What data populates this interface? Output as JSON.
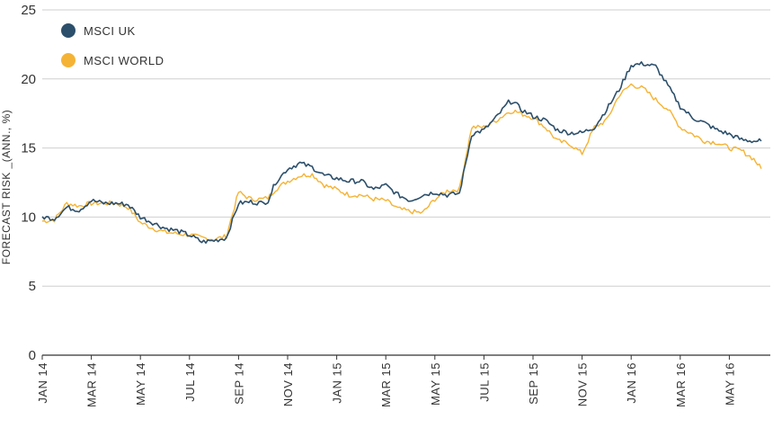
{
  "chart_data": {
    "type": "line",
    "title": "",
    "xlabel": "",
    "ylabel": "FORECAST RISK _(ANN., %)",
    "ylim": [
      0,
      25
    ],
    "yticks": [
      0,
      5,
      10,
      15,
      20,
      25
    ],
    "x_tick_labels": [
      "JAN 14",
      "MAR 14",
      "MAY 14",
      "JUL 14",
      "SEP 14",
      "NOV 14",
      "JAN 15",
      "MAR 15",
      "MAY 15",
      "JUL 15",
      "SEP 15",
      "NOV 15",
      "JAN 16",
      "MAR 16",
      "MAY 16"
    ],
    "xlim_months": [
      0,
      29.3
    ],
    "grid": "horizontal",
    "legend_position": "top-left",
    "series": [
      {
        "name": "MSCI UK",
        "color": "#2c4f6b",
        "x": [
          0,
          0.5,
          1,
          1.5,
          2,
          2.5,
          3,
          3.5,
          4,
          4.5,
          5,
          5.5,
          6,
          6.5,
          7,
          7.5,
          8,
          8.5,
          9,
          9.2,
          9.5,
          10,
          10.5,
          11,
          11.5,
          12,
          12.5,
          13,
          13.5,
          14,
          14.5,
          15,
          15.5,
          16,
          16.5,
          17,
          17.5,
          18,
          18.5,
          19,
          19.2,
          19.5,
          20,
          20.5,
          21,
          21.5,
          22,
          22.5,
          23,
          23.5,
          24,
          24.5,
          25,
          25.5,
          26,
          26.5,
          27,
          27.5,
          28,
          28.5,
          29,
          29.3
        ],
        "values": [
          10.0,
          9.9,
          10.7,
          10.5,
          11.2,
          11.0,
          11.0,
          10.9,
          10.0,
          9.6,
          9.2,
          9.0,
          8.7,
          8.2,
          8.3,
          8.5,
          11.0,
          11.1,
          11.0,
          11.2,
          12.5,
          13.5,
          13.9,
          13.6,
          13.0,
          12.8,
          12.6,
          12.6,
          12.0,
          12.3,
          11.6,
          11.2,
          11.6,
          11.8,
          11.6,
          11.7,
          16.0,
          16.3,
          17.2,
          18.3,
          18.4,
          17.8,
          17.3,
          17.0,
          16.3,
          16.1,
          16.1,
          16.5,
          17.8,
          19.2,
          21.0,
          21.1,
          20.9,
          19.5,
          18.0,
          17.2,
          16.8,
          16.3,
          16.0,
          15.6,
          15.5,
          15.5
        ],
        "values_encoding": "paired with x (months since JAN 14)"
      },
      {
        "name": "MSCI WORLD",
        "color": "#f5b335",
        "x": [
          0,
          0.5,
          1,
          1.5,
          2,
          2.5,
          3,
          3.5,
          4,
          4.5,
          5,
          5.5,
          6,
          6.5,
          7,
          7.5,
          8,
          8.5,
          9,
          9.2,
          9.5,
          10,
          10.5,
          11,
          11.5,
          12,
          12.5,
          13,
          13.5,
          14,
          14.5,
          15,
          15.5,
          16,
          16.5,
          17,
          17.5,
          18,
          18.5,
          19,
          19.2,
          19.5,
          20,
          20.5,
          21,
          21.5,
          22,
          22.5,
          23,
          23.5,
          24,
          24.5,
          25,
          25.5,
          26,
          26.5,
          27,
          27.5,
          28,
          28.5,
          29,
          29.3
        ],
        "values": [
          9.7,
          9.8,
          11.0,
          10.8,
          11.0,
          11.0,
          11.0,
          10.7,
          9.6,
          9.2,
          8.9,
          8.8,
          8.7,
          8.5,
          8.4,
          8.6,
          11.8,
          11.3,
          11.3,
          11.4,
          12.0,
          12.6,
          13.0,
          13.1,
          12.3,
          12.0,
          11.6,
          11.6,
          11.3,
          11.2,
          10.6,
          10.4,
          10.3,
          11.3,
          11.9,
          12.0,
          16.5,
          16.5,
          17.0,
          17.6,
          17.7,
          17.5,
          17.2,
          16.5,
          15.5,
          15.3,
          14.6,
          16.5,
          17.0,
          18.8,
          19.6,
          19.3,
          18.5,
          17.8,
          16.5,
          16.0,
          15.5,
          15.4,
          15.0,
          14.8,
          14.2,
          13.5
        ],
        "values_encoding": "paired with x (months since JAN 14)"
      }
    ]
  }
}
